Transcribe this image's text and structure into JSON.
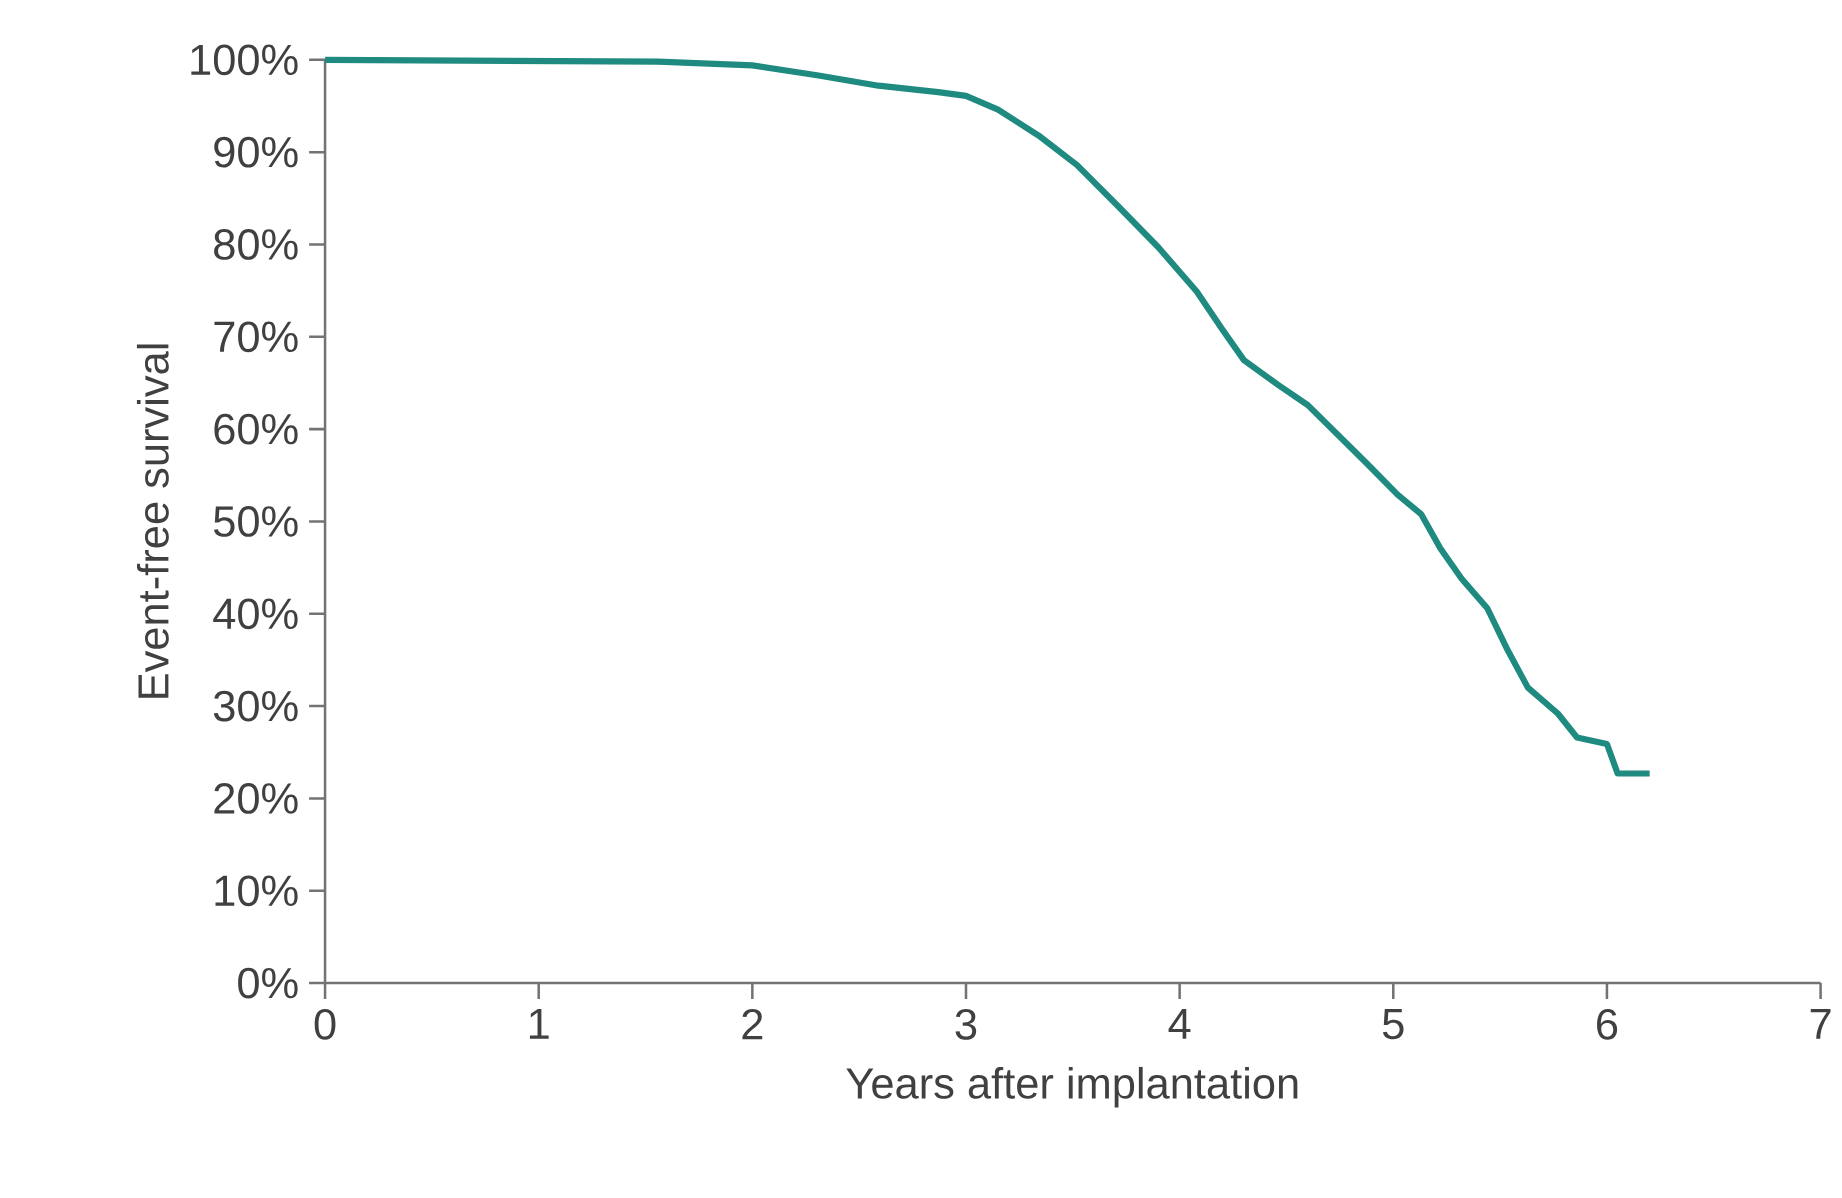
{
  "chart_data": {
    "type": "line",
    "xlabel": "Years after implantation",
    "ylabel": "Event-free survival",
    "series": [
      {
        "color": "#1f8a80",
        "x": [
          0,
          1.56,
          2.0,
          2.31,
          2.59,
          2.87,
          3.0,
          3.15,
          3.34,
          3.52,
          3.71,
          3.9,
          4.08,
          4.2,
          4.3,
          4.46,
          4.6,
          4.74,
          4.88,
          5.02,
          5.13,
          5.22,
          5.32,
          5.44,
          5.53,
          5.63,
          5.77,
          5.86,
          6.0,
          6.05,
          6.2
        ],
        "values": [
          100,
          99.8,
          99.4,
          98.3,
          97.2,
          96.5,
          96.1,
          94.6,
          91.8,
          88.6,
          84.2,
          79.7,
          74.9,
          70.8,
          67.5,
          64.8,
          62.6,
          59.4,
          56.2,
          52.9,
          50.8,
          47.1,
          43.8,
          40.6,
          36.3,
          32.0,
          29.2,
          26.6,
          25.9,
          22.7,
          22.7
        ]
      }
    ],
    "xlim": [
      0,
      7
    ],
    "xticks": [
      0,
      1,
      2,
      3,
      4,
      5,
      6,
      7
    ],
    "ylim": [
      0,
      100
    ],
    "yticks": [
      {
        "value": 0,
        "label": "0%"
      },
      {
        "value": 10,
        "label": "10%"
      },
      {
        "value": 20,
        "label": "20%"
      },
      {
        "value": 30,
        "label": "30%"
      },
      {
        "value": 40,
        "label": "40%"
      },
      {
        "value": 50,
        "label": "50%"
      },
      {
        "value": 60,
        "label": "60%"
      },
      {
        "value": 70,
        "label": "70%"
      },
      {
        "value": 80,
        "label": "80%"
      },
      {
        "value": 90,
        "label": "90%"
      },
      {
        "value": 100,
        "label": "100%"
      }
    ],
    "grid": false,
    "marker": "none",
    "line_style": "solid"
  }
}
